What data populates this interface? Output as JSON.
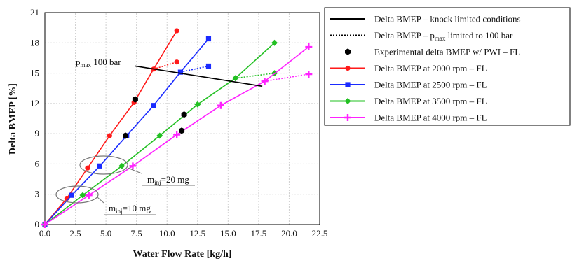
{
  "chart_data": {
    "type": "line",
    "xlabel": "Water Flow Rate [kg/h]",
    "ylabel": "Delta BMEP [%]",
    "xlim": [
      0,
      22.5
    ],
    "ylim": [
      0,
      21
    ],
    "xticks": [
      "0.0",
      "2.5",
      "5.0",
      "7.5",
      "10.0",
      "12.5",
      "15.0",
      "17.5",
      "20.0",
      "22.5"
    ],
    "yticks": [
      "0",
      "3",
      "6",
      "9",
      "12",
      "15",
      "18",
      "21"
    ],
    "grid": true,
    "legend_position": "right, outside plot",
    "legend": [
      {
        "label": "Delta BMEP – knock limited conditions",
        "style": "solid",
        "color": "#000000"
      },
      {
        "label_pre": "Delta BMEP – p",
        "label_sub": "max",
        "label_post": " limited to 100 bar",
        "style": "dotted",
        "color": "#000000"
      },
      {
        "label": "Experimental delta BMEP w/ PWI – FL",
        "style": "hexagon",
        "color": "#000000"
      },
      {
        "label": "Delta BMEP at 2000 rpm – FL",
        "style": "circle",
        "color": "#ff1a1a"
      },
      {
        "label": "Delta BMEP at 2500 rpm – FL",
        "style": "square",
        "color": "#1a2bff"
      },
      {
        "label": "Delta BMEP at 3500 rpm – FL",
        "style": "diamond",
        "color": "#22c022"
      },
      {
        "label": "Delta BMEP at 4000 rpm – FL",
        "style": "plus",
        "color": "#ff22ff"
      }
    ],
    "series": [
      {
        "name": "Delta BMEP at 2000 rpm – FL",
        "color": "#ff1a1a",
        "marker": "circle",
        "x": [
          0,
          1.8,
          3.5,
          5.3,
          7.3,
          8.9
        ],
        "y": [
          0,
          2.6,
          5.6,
          8.8,
          12.1,
          15.4
        ],
        "ext_solid": {
          "x": [
            8.9,
            10.8
          ],
          "y": [
            15.4,
            19.2
          ]
        },
        "ext_dotted": {
          "x": [
            8.9,
            10.8
          ],
          "y": [
            15.4,
            16.1
          ]
        }
      },
      {
        "name": "Delta BMEP at 2500 rpm – FL",
        "color": "#1a2bff",
        "marker": "square",
        "x": [
          0,
          2.2,
          4.5,
          6.7,
          8.9,
          11.1
        ],
        "y": [
          0,
          2.9,
          5.8,
          8.8,
          11.8,
          15.1
        ],
        "ext_solid": {
          "x": [
            11.1,
            13.4
          ],
          "y": [
            15.1,
            18.4
          ]
        },
        "ext_dotted": {
          "x": [
            11.1,
            13.4
          ],
          "y": [
            15.1,
            15.7
          ]
        }
      },
      {
        "name": "Delta BMEP at 3500 rpm – FL",
        "color": "#22c022",
        "marker": "diamond",
        "x": [
          0,
          3.1,
          6.3,
          9.4,
          12.5,
          15.6
        ],
        "y": [
          0,
          2.9,
          5.8,
          8.8,
          11.9,
          14.5
        ],
        "ext_solid": {
          "x": [
            15.6,
            18.8
          ],
          "y": [
            14.5,
            18.0
          ]
        },
        "ext_dotted": {
          "x": [
            15.6,
            18.8
          ],
          "y": [
            14.5,
            15.0
          ]
        }
      },
      {
        "name": "Delta BMEP at 4000 rpm – FL",
        "color": "#ff22ff",
        "marker": "plus",
        "x": [
          0,
          3.6,
          7.2,
          10.8,
          14.4,
          18.0
        ],
        "y": [
          0,
          2.9,
          5.8,
          8.9,
          11.8,
          14.2
        ],
        "ext_solid": {
          "x": [
            18.0,
            21.6
          ],
          "y": [
            14.2,
            17.6
          ]
        },
        "ext_dotted": {
          "x": [
            18.0,
            21.6
          ],
          "y": [
            14.2,
            14.9
          ]
        }
      }
    ],
    "knock_line": {
      "x": [
        7.4,
        17.8
      ],
      "y": [
        15.7,
        13.7
      ]
    },
    "experimental": {
      "x": [
        7.4,
        11.2,
        11.4,
        6.6
      ],
      "y": [
        12.4,
        9.3,
        10.9,
        8.8
      ]
    },
    "annotations": {
      "pmax_pre": "p",
      "pmax_sub": "max",
      "pmax_post": " 100 bar",
      "m20_pre": "m",
      "m20_sub": "inj",
      "m20_post": "=20 mg",
      "m10_pre": "m",
      "m10_sub": "inj",
      "m10_post": "=10 mg"
    }
  }
}
